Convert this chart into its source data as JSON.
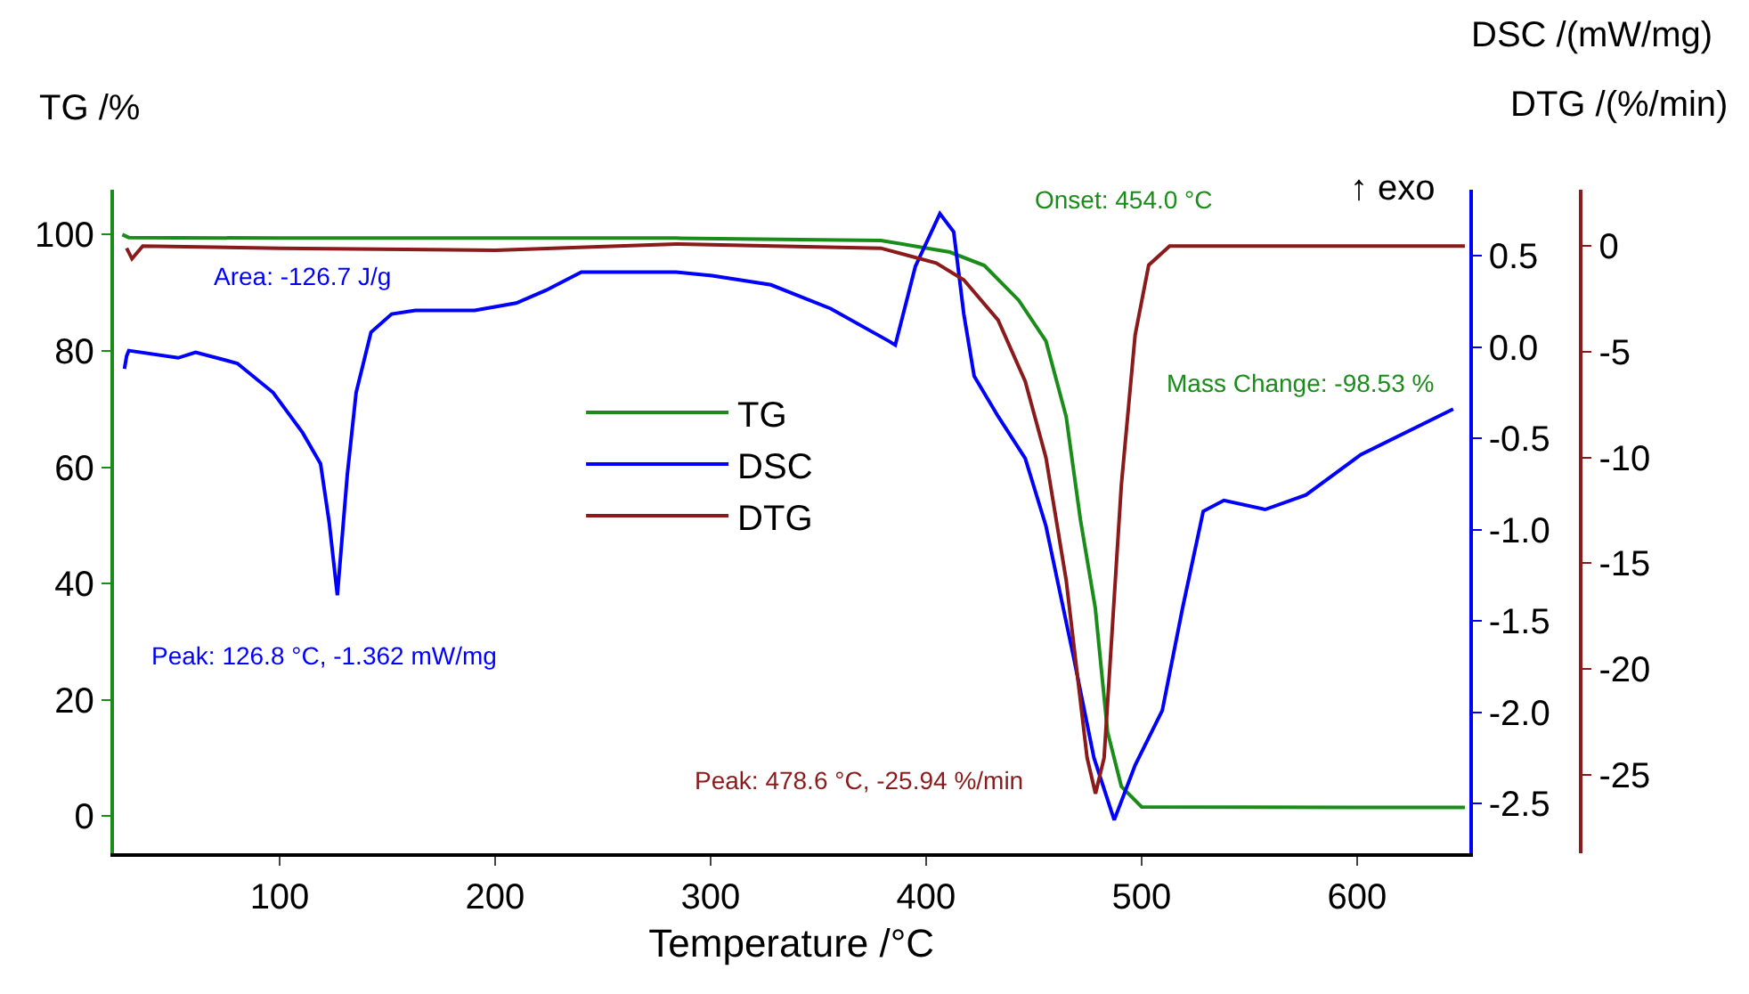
{
  "chart_data": {
    "type": "line",
    "xlabel": "Temperature /°C",
    "ylabel": "TG /%",
    "y2label": "DSC /(mW/mg)",
    "y3label": "DTG /(%/min)",
    "xlim": [
      23,
      652
    ],
    "xticks": [
      100,
      200,
      300,
      400,
      500,
      600
    ],
    "ylim": [
      -6.3,
      107.7
    ],
    "yticks": [
      0,
      20,
      40,
      60,
      80,
      100
    ],
    "y2lim": [
      -2.77,
      0.86
    ],
    "y2ticks": [
      {
        "value": 0.5,
        "label": "0.5"
      },
      {
        "value": 0,
        "label": "0.0"
      },
      {
        "value": -0.5,
        "label": "-0.5"
      },
      {
        "value": -1,
        "label": "-1.0"
      },
      {
        "value": -1.5,
        "label": "-1.5"
      },
      {
        "value": -2,
        "label": "-2.0"
      },
      {
        "value": -2.5,
        "label": "-2.5"
      }
    ],
    "y3lim": [
      -28.7,
      2.66
    ],
    "y3ticks": [
      0,
      -5,
      -10,
      -15,
      -20,
      -25
    ],
    "legend": "center",
    "marker": "none",
    "line_style": "solid",
    "series": [
      {
        "name": "TG",
        "color": "#1a8c1a",
        "x": [
          27,
          30,
          100,
          200,
          284,
          379,
          411,
          427,
          443,
          455.6,
          465,
          471.6,
          478.5,
          484.2,
          490.6,
          500,
          600,
          650
        ],
        "values": [
          100,
          99.5,
          99.4,
          99.4,
          99.4,
          99.0,
          97,
          94.7,
          88.7,
          81.7,
          68.7,
          51,
          35.8,
          14.5,
          5.1,
          1.6,
          1.5,
          1.5
        ]
      },
      {
        "name": "DSC",
        "color": "#0000ff",
        "axis": "y2",
        "x": [
          28,
          29,
          30,
          52.9,
          61,
          80.4,
          97,
          110.7,
          119,
          123,
          126.8,
          131.4,
          135.5,
          142.4,
          152,
          163,
          190.5,
          209.8,
          223.6,
          240,
          273,
          284,
          300.7,
          328,
          355.7,
          383,
          385.7,
          395,
          406.4,
          412.8,
          417.5,
          422.3,
          433.4,
          446,
          455.6,
          468.3,
          477.9,
          487.3,
          497,
          509.6,
          519,
          528.6,
          538.2,
          557.3,
          576.3,
          601.7,
          644.6
        ],
        "values": [
          -0.12,
          -0.05,
          -0.02,
          -0.06,
          -0.03,
          -0.09,
          -0.25,
          -0.47,
          -0.64,
          -0.96,
          -1.36,
          -0.7,
          -0.25,
          0.08,
          0.18,
          0.2,
          0.2,
          0.24,
          0.31,
          0.41,
          0.41,
          0.41,
          0.39,
          0.34,
          0.21,
          0.03,
          0.01,
          0.44,
          0.73,
          0.63,
          0.18,
          -0.16,
          -0.38,
          -0.61,
          -0.98,
          -1.69,
          -2.25,
          -2.59,
          -2.29,
          -1.99,
          -1.43,
          -0.9,
          -0.84,
          -0.89,
          -0.81,
          -0.59,
          -0.34
        ]
      },
      {
        "name": "DTG",
        "color": "#8b1a1a",
        "axis": "y3",
        "x": [
          29,
          31.5,
          36.5,
          100,
          200,
          284,
          379,
          404.7,
          417.5,
          433.4,
          446,
          455.6,
          465,
          474.7,
          478.6,
          482.6,
          490.6,
          497,
          503.3,
          513,
          600,
          650
        ],
        "values": [
          -0.1,
          -0.6,
          0,
          -0.1,
          -0.2,
          0.1,
          -0.1,
          -0.8,
          -1.6,
          -3.5,
          -6.4,
          -10,
          -15.8,
          -24.2,
          -25.9,
          -24.2,
          -11.3,
          -4.2,
          -0.9,
          0,
          0,
          0
        ]
      }
    ],
    "annotations": [
      "Area: -126.7 J/g",
      "Peak: 126.8 °C, -1.362 mW/mg",
      "Onset: 454.0 °C",
      "↑ exo",
      "Mass Change: -98.53 %",
      "Peak: 478.6 °C, -25.94 %/min"
    ]
  }
}
